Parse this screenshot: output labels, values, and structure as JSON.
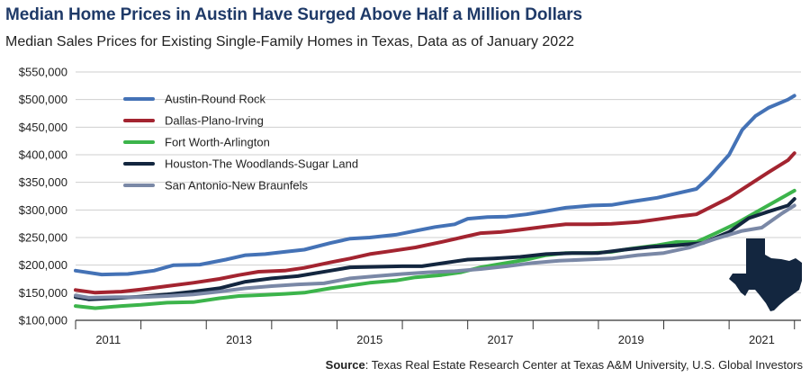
{
  "header": {
    "title": "Median Home Prices in Austin Have Surged Above Half a Million Dollars",
    "subtitle": "Median Sales Prices for Existing Single-Family Homes in Texas, Data as of January 2022"
  },
  "source": {
    "label": "Source",
    "text": ": Texas Real Estate Research Center at Texas A&M University, U.S. Global Investors"
  },
  "chart_data": {
    "type": "line",
    "xlim": [
      2011.0,
      2022.1
    ],
    "ylim": [
      100000,
      550000
    ],
    "yticks": [
      100000,
      150000,
      200000,
      250000,
      300000,
      350000,
      400000,
      450000,
      500000,
      550000
    ],
    "ytick_labels": [
      "$100,000",
      "$150,000",
      "$200,000",
      "$250,000",
      "$300,000",
      "$350,000",
      "$400,000",
      "$450,000",
      "$500,000",
      "$550,000"
    ],
    "xtick_labels": [
      {
        "x": 2011,
        "label": "2011"
      },
      {
        "x": 2013,
        "label": "2013"
      },
      {
        "x": 2015,
        "label": "2015"
      },
      {
        "x": 2017,
        "label": "2017"
      },
      {
        "x": 2019,
        "label": "2019"
      },
      {
        "x": 2021,
        "label": "2021"
      }
    ],
    "x_gridlines": [
      2012,
      2013,
      2014,
      2015,
      2016,
      2017,
      2018,
      2019,
      2020,
      2021,
      2022
    ],
    "grid": "horizontal",
    "legend_position": "top-left",
    "series": [
      {
        "name": "Austin-Round Rock",
        "color": "#4472b6",
        "x": [
          2011.0,
          2011.4,
          2011.8,
          2012.2,
          2012.5,
          2012.9,
          2013.3,
          2013.6,
          2013.9,
          2014.2,
          2014.5,
          2014.9,
          2015.2,
          2015.5,
          2015.9,
          2016.2,
          2016.5,
          2016.8,
          2017.0,
          2017.3,
          2017.6,
          2017.9,
          2018.2,
          2018.5,
          2018.9,
          2019.2,
          2019.5,
          2019.9,
          2020.2,
          2020.5,
          2020.7,
          2021.0,
          2021.2,
          2021.4,
          2021.6,
          2021.9,
          2022.0
        ],
        "y": [
          190000,
          183000,
          184000,
          190000,
          200000,
          201000,
          210000,
          218000,
          220000,
          224000,
          228000,
          240000,
          248000,
          250000,
          255000,
          262000,
          269000,
          274000,
          284000,
          287000,
          288000,
          292000,
          298000,
          304000,
          308000,
          309000,
          315000,
          322000,
          330000,
          338000,
          360000,
          400000,
          445000,
          470000,
          485000,
          500000,
          507000
        ]
      },
      {
        "name": "Dallas-Plano-Irving",
        "color": "#a32430",
        "x": [
          2011.0,
          2011.3,
          2011.7,
          2012.0,
          2012.4,
          2012.8,
          2013.2,
          2013.5,
          2013.8,
          2014.2,
          2014.5,
          2014.9,
          2015.2,
          2015.5,
          2015.8,
          2016.2,
          2016.6,
          2016.9,
          2017.2,
          2017.5,
          2017.8,
          2018.2,
          2018.5,
          2018.9,
          2019.2,
          2019.6,
          2019.9,
          2020.2,
          2020.5,
          2020.8,
          2021.0,
          2021.3,
          2021.6,
          2021.9,
          2022.0
        ],
        "y": [
          155000,
          150000,
          152000,
          156000,
          162000,
          168000,
          175000,
          182000,
          188000,
          190000,
          195000,
          205000,
          212000,
          220000,
          225000,
          232000,
          242000,
          250000,
          258000,
          260000,
          264000,
          270000,
          274000,
          274000,
          275000,
          278000,
          283000,
          288000,
          292000,
          310000,
          322000,
          345000,
          368000,
          390000,
          403000
        ]
      },
      {
        "name": "Fort Worth-Arlington",
        "color": "#3cb44b",
        "x": [
          2011.0,
          2011.3,
          2011.7,
          2012.0,
          2012.4,
          2012.8,
          2013.2,
          2013.5,
          2013.9,
          2014.2,
          2014.5,
          2014.9,
          2015.2,
          2015.5,
          2015.9,
          2016.2,
          2016.6,
          2016.9,
          2017.2,
          2017.5,
          2017.9,
          2018.2,
          2018.5,
          2018.9,
          2019.2,
          2019.5,
          2019.9,
          2020.2,
          2020.5,
          2020.8,
          2021.1,
          2021.4,
          2021.7,
          2022.0
        ],
        "y": [
          126000,
          122000,
          126000,
          128000,
          132000,
          133000,
          140000,
          144000,
          146000,
          148000,
          150000,
          158000,
          163000,
          168000,
          172000,
          178000,
          182000,
          187000,
          196000,
          202000,
          210000,
          218000,
          222000,
          222000,
          224000,
          230000,
          236000,
          242000,
          242000,
          258000,
          275000,
          295000,
          315000,
          335000
        ]
      },
      {
        "name": "Houston-The Woodlands-Sugar Land",
        "color": "#13263f",
        "x": [
          2011.0,
          2011.2,
          2011.6,
          2012.0,
          2012.4,
          2012.8,
          2013.2,
          2013.6,
          2014.0,
          2014.4,
          2014.9,
          2015.2,
          2015.6,
          2016.0,
          2016.3,
          2016.7,
          2017.0,
          2017.4,
          2017.8,
          2018.2,
          2018.6,
          2019.0,
          2019.4,
          2019.8,
          2020.2,
          2020.6,
          2021.0,
          2021.3,
          2021.6,
          2021.9,
          2022.0
        ],
        "y": [
          142000,
          138000,
          140000,
          143000,
          147000,
          152000,
          158000,
          170000,
          176000,
          180000,
          190000,
          196000,
          197000,
          198000,
          198000,
          205000,
          210000,
          212000,
          215000,
          220000,
          222000,
          222000,
          228000,
          233000,
          236000,
          240000,
          260000,
          285000,
          297000,
          308000,
          320000
        ]
      },
      {
        "name": "San Antonio-New Braunfels",
        "color": "#7a88a6",
        "x": [
          2011.0,
          2011.2,
          2011.6,
          2012.0,
          2012.4,
          2012.8,
          2013.2,
          2013.6,
          2014.0,
          2014.4,
          2014.8,
          2015.2,
          2015.6,
          2016.0,
          2016.4,
          2016.8,
          2017.2,
          2017.6,
          2018.0,
          2018.4,
          2018.8,
          2019.2,
          2019.6,
          2020.0,
          2020.4,
          2020.8,
          2021.2,
          2021.5,
          2021.8,
          2022.0
        ],
        "y": [
          145000,
          141000,
          142000,
          142000,
          144000,
          147000,
          152000,
          158000,
          162000,
          165000,
          167000,
          176000,
          180000,
          184000,
          187000,
          189000,
          193000,
          198000,
          204000,
          208000,
          210000,
          212000,
          218000,
          222000,
          232000,
          248000,
          262000,
          268000,
          293000,
          308000
        ]
      }
    ]
  }
}
